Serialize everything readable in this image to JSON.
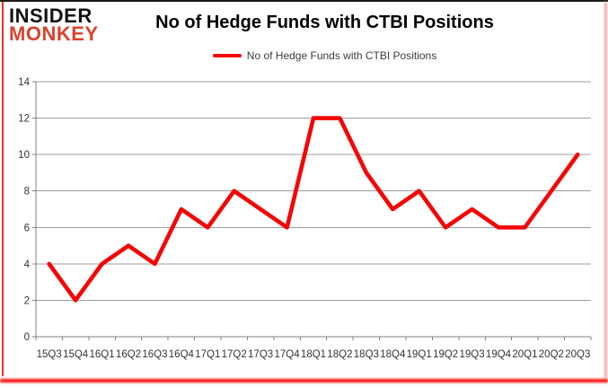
{
  "header": {
    "logo_line1": "INSIDER",
    "logo_line2": "MONKEY",
    "title": "No of Hedge Funds with CTBI Positions",
    "legend_label": "No of Hedge Funds with CTBI Positions"
  },
  "colors": {
    "series_line": "#f40606",
    "gridline": "#9d9d9d",
    "axis_line": "#808080",
    "axis_text": "#333333",
    "logo_red": "#d9432e",
    "frame_red": "#e8332a"
  },
  "chart_data": {
    "type": "line",
    "title": "No of Hedge Funds with CTBI Positions",
    "categories": [
      "15Q3",
      "15Q4",
      "16Q1",
      "16Q2",
      "16Q3",
      "16Q4",
      "17Q1",
      "17Q2",
      "17Q3",
      "17Q4",
      "18Q1",
      "18Q2",
      "18Q3",
      "18Q4",
      "19Q1",
      "19Q2",
      "19Q3",
      "19Q4",
      "20Q1",
      "20Q2",
      "20Q3"
    ],
    "series": [
      {
        "name": "No of Hedge Funds with CTBI Positions",
        "values": [
          4,
          2,
          4,
          5,
          4,
          7,
          6,
          8,
          7,
          6,
          12,
          12,
          9,
          7,
          8,
          6,
          7,
          6,
          6,
          8,
          10
        ]
      }
    ],
    "xlabel": "",
    "ylabel": "",
    "ylim": [
      0,
      14
    ],
    "ytick_step": 2,
    "grid": true,
    "legend_position": "top"
  }
}
